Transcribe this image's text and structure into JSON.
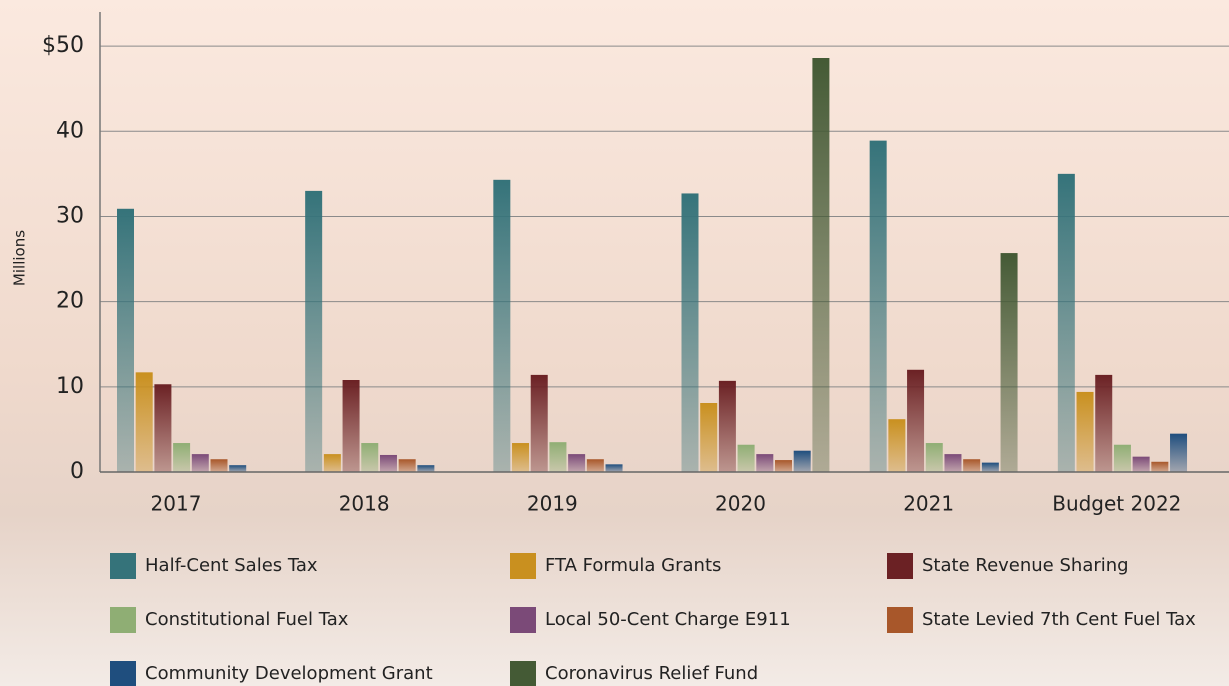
{
  "chart_data": {
    "type": "bar",
    "y_label": "Millions",
    "categories": [
      "2017",
      "2018",
      "2019",
      "2020",
      "2021",
      "Budget 2022"
    ],
    "ylim": [
      0,
      54
    ],
    "yticks": [
      0,
      10,
      20,
      30,
      40,
      {
        "value": 50,
        "label": "$50"
      }
    ],
    "grid": true,
    "legend": "bottom",
    "series": [
      {
        "name": "Half-Cent Sales Tax",
        "color": "#35737a",
        "values": [
          30.9,
          33.0,
          34.3,
          32.7,
          38.9,
          35.0
        ]
      },
      {
        "name": "FTA Formula Grants",
        "color": "#c9901f",
        "values": [
          11.7,
          2.1,
          3.4,
          8.1,
          6.2,
          9.4
        ]
      },
      {
        "name": "State Revenue Sharing",
        "color": "#6b2124",
        "values": [
          10.3,
          10.8,
          11.4,
          10.7,
          12.0,
          11.4
        ]
      },
      {
        "name": "Constitutional Fuel Tax",
        "color": "#8fae74",
        "values": [
          3.4,
          3.4,
          3.5,
          3.2,
          3.4,
          3.2
        ]
      },
      {
        "name": "Local 50-Cent Charge E911",
        "color": "#7b4a78",
        "values": [
          2.1,
          2.0,
          2.1,
          2.1,
          2.1,
          1.8
        ]
      },
      {
        "name": "State Levied 7th Cent Fuel Tax",
        "color": "#a8572a",
        "values": [
          1.5,
          1.5,
          1.5,
          1.4,
          1.5,
          1.2
        ]
      },
      {
        "name": "Community Development Grant",
        "color": "#1f4e7e",
        "values": [
          0.8,
          0.8,
          0.9,
          2.5,
          1.1,
          4.5
        ]
      },
      {
        "name": "Coronavirus Relief Fund",
        "color": "#445a35",
        "values": [
          null,
          null,
          null,
          48.6,
          25.7,
          null
        ]
      }
    ]
  }
}
